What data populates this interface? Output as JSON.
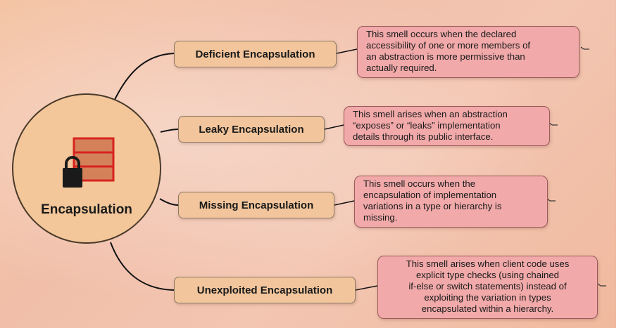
{
  "central": {
    "label": "Encapsulation",
    "icon": "lock-with-stacked-boxes-icon"
  },
  "smells": [
    {
      "name": "Deficient Encapsulation",
      "description_lines": [
        "This smell occurs when the declared",
        "accessibility of one or more members of",
        "an abstraction is more permissive than",
        "actually required."
      ]
    },
    {
      "name": "Leaky Encapsulation",
      "description_lines": [
        "This smell arises when an abstraction",
        "“exposes” or “leaks” implementation",
        "details through its public interface."
      ]
    },
    {
      "name": "Missing Encapsulation",
      "description_lines": [
        "This smell occurs when the",
        "encapsulation of implementation",
        "variations in a type or hierarchy is",
        "missing."
      ]
    },
    {
      "name": "Unexploited Encapsulation",
      "description_lines": [
        "This smell arises when client code uses",
        "explicit type checks (using chained",
        "if-else or switch statements) instead of",
        "exploiting the variation in types",
        "encapsulated within a hierarchy."
      ]
    }
  ],
  "colors": {
    "hub_fill": "#f3c79a",
    "topic_fill": "#f2c59c",
    "description_fill": "#f1a9a9",
    "icon_red": "#d8231f",
    "icon_box_fill": "#d4815a"
  }
}
